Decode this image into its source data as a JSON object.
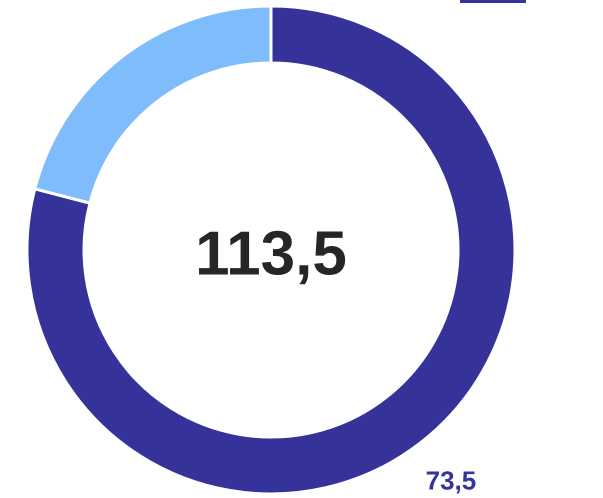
{
  "chart_data": {
    "type": "donut",
    "center_text": "113,5",
    "values": [
      73.5,
      19.5
    ],
    "value_labels": [
      "73,5",
      null
    ],
    "colors": [
      "#35339a",
      "#7fbcfc"
    ]
  }
}
